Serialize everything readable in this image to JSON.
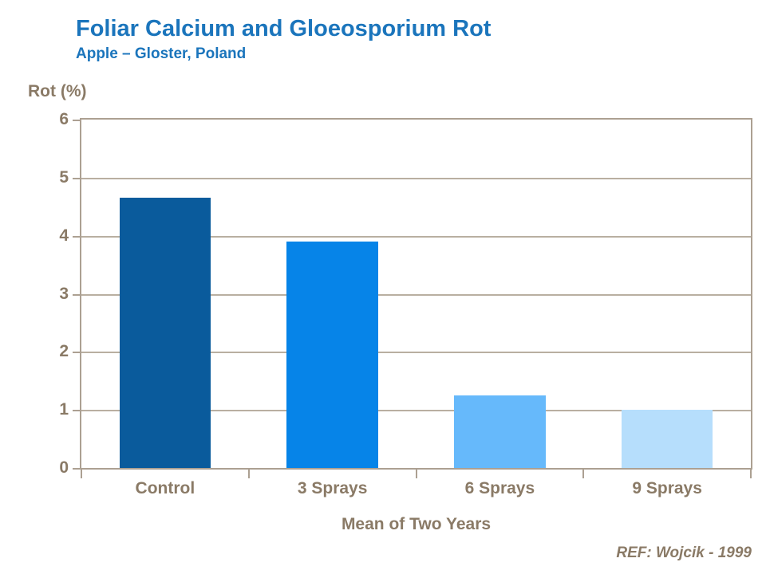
{
  "header": {
    "title": "Foliar Calcium and Gloeosporium Rot",
    "subtitle": "Apple – Gloster, Poland"
  },
  "footer": {
    "reference": "REF: Wojcik - 1999"
  },
  "colors": {
    "title_blue": "#1B75BC",
    "text_brown": "#8A7A66",
    "axis_tan": "#ACA092",
    "gridline_tan": "#B9AFA1",
    "background": "#FFFFFF"
  },
  "chart_data": {
    "type": "bar",
    "title": "Foliar Calcium and Gloeosporium Rot",
    "subtitle": "Apple – Gloster, Poland",
    "categories": [
      "Control",
      "3 Sprays",
      "6 Sprays",
      "9 Sprays"
    ],
    "values": [
      4.65,
      3.9,
      1.25,
      1.0
    ],
    "bar_colors": [
      "#0A5B9C",
      "#0684E8",
      "#66B9FB",
      "#B6DEFC"
    ],
    "ylabel": "Rot (%)",
    "xlabel": "Mean of Two Years",
    "ylim": [
      0,
      6
    ],
    "yticks": [
      0,
      1,
      2,
      3,
      4,
      5,
      6
    ],
    "grid": true,
    "legend": false
  }
}
